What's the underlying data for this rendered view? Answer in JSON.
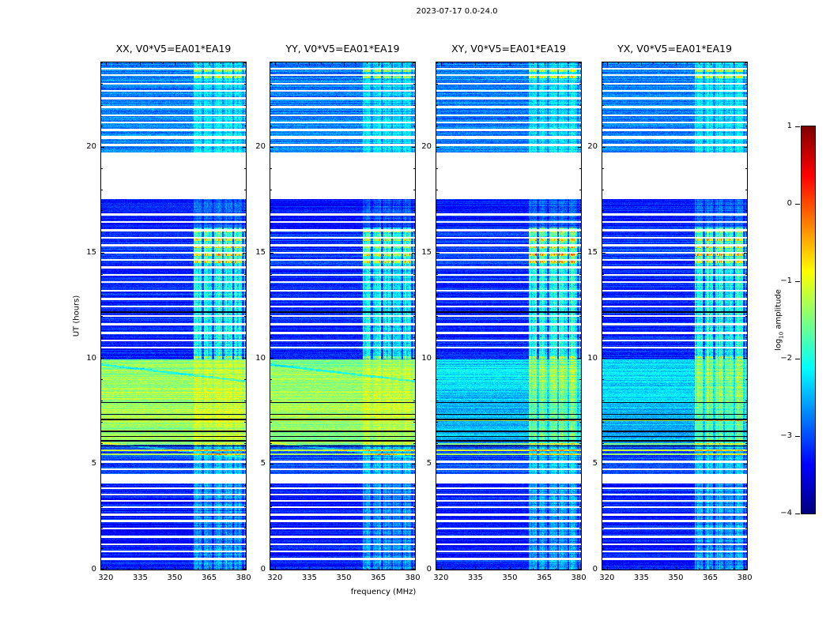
{
  "title": "2023-07-17 0.0-24.0",
  "chart_data": {
    "type": "heatmap",
    "title": "2023-07-17 0.0-24.0",
    "x": {
      "label": "frequency (MHz)",
      "min": 318,
      "max": 381,
      "ticks": [
        320,
        335,
        350,
        365,
        380
      ],
      "minor_step": 5
    },
    "y": {
      "label": "UT (hours)",
      "min": 0,
      "max": 24,
      "ticks": [
        0,
        5,
        10,
        15,
        20
      ],
      "minor_step": 1
    },
    "value_range": [
      -4,
      1
    ],
    "colormap": "jet",
    "panels": [
      {
        "title": "XX, V0*V5=EA01*EA19",
        "pol": "XX",
        "bright_band": true,
        "seed": 11
      },
      {
        "title": "YY, V0*V5=EA01*EA19",
        "pol": "YY",
        "bright_band": true,
        "seed": 22
      },
      {
        "title": "XY, V0*V5=EA01*EA19",
        "pol": "XY",
        "bright_band": false,
        "seed": 33
      },
      {
        "title": "YX, V0*V5=EA01*EA19",
        "pol": "YX",
        "bright_band": false,
        "seed": 44
      }
    ],
    "bands": [
      {
        "t0": 0,
        "t1": 4.07,
        "base": -3.25,
        "noise": 0.3,
        "rfi": 0.85
      },
      {
        "t0": 4.07,
        "t1": 4.52,
        "blank": true
      },
      {
        "t0": 4.52,
        "t1": 6.0,
        "base": -3.0,
        "noise": 0.32,
        "rfi": 0.8
      },
      {
        "t0": 6.0,
        "t1": 9.95,
        "base": -1.55,
        "base_cross": -2.5,
        "noise": 0.32,
        "rfi": 0.3,
        "rfi_cross": 1.1,
        "bright": true
      },
      {
        "t0": 9.95,
        "t1": 14.45,
        "base": -3.2,
        "noise": 0.3,
        "rfi": 1.45
      },
      {
        "t0": 14.45,
        "t1": 16.2,
        "base": -3.1,
        "noise": 0.3,
        "rfi": 1.7
      },
      {
        "t0": 16.2,
        "t1": 17.55,
        "base": -3.25,
        "noise": 0.28,
        "rfi": 0.5
      },
      {
        "t0": 17.55,
        "t1": 19.75,
        "blank": true
      },
      {
        "t0": 19.75,
        "t1": 24,
        "base": -2.75,
        "noise": 0.35,
        "rfi": 0.65
      }
    ],
    "white_lines": [
      [
        0.5,
        0.09
      ],
      [
        0.85,
        0.09
      ],
      [
        1.2,
        0.09
      ],
      [
        1.55,
        0.09
      ],
      [
        1.95,
        0.09
      ],
      [
        2.3,
        0.09
      ],
      [
        2.6,
        0.09
      ],
      [
        2.95,
        0.09
      ],
      [
        3.25,
        0.09
      ],
      [
        3.55,
        0.09
      ],
      [
        3.85,
        0.09
      ],
      [
        4.75,
        0.1
      ],
      [
        5.1,
        0.09
      ],
      [
        10.5,
        0.09
      ],
      [
        10.85,
        0.09
      ],
      [
        11.2,
        0.09
      ],
      [
        11.6,
        0.09
      ],
      [
        12.0,
        0.09
      ],
      [
        12.45,
        0.09
      ],
      [
        12.8,
        0.09
      ],
      [
        13.2,
        0.09
      ],
      [
        13.6,
        0.09
      ],
      [
        13.95,
        0.09
      ],
      [
        14.3,
        0.09
      ],
      [
        14.65,
        0.09
      ],
      [
        15.0,
        0.09
      ],
      [
        15.35,
        0.09
      ],
      [
        15.7,
        0.09
      ],
      [
        16.05,
        0.09
      ],
      [
        16.45,
        0.09
      ],
      [
        16.8,
        0.09
      ],
      [
        20.1,
        0.09
      ],
      [
        20.45,
        0.12
      ],
      [
        20.8,
        0.09
      ],
      [
        21.15,
        0.09
      ],
      [
        21.5,
        0.09
      ],
      [
        21.9,
        0.12
      ],
      [
        22.3,
        0.09
      ],
      [
        22.65,
        0.09
      ],
      [
        23.0,
        0.09
      ],
      [
        23.4,
        0.09
      ],
      [
        23.7,
        0.09
      ]
    ],
    "dark_lines": [
      [
        5.85,
        0.06
      ],
      [
        6.1,
        0.06
      ],
      [
        6.3,
        0.06
      ],
      [
        6.55,
        0.06
      ],
      [
        7.1,
        0.06
      ],
      [
        7.35,
        0.06
      ],
      [
        7.9,
        0.05
      ],
      [
        12.2,
        0.07
      ]
    ],
    "hot_lines": [
      [
        5.45,
        -1.3,
        0.07
      ],
      [
        5.65,
        -1.1,
        0.07
      ],
      [
        5.95,
        -1.5,
        0.07
      ],
      [
        7.05,
        -1.3,
        0.06
      ]
    ],
    "rfi_boost_lines": [
      [
        10.05,
        1.0,
        0.12
      ],
      [
        14.55,
        1.2,
        0.1
      ],
      [
        14.9,
        1.3,
        0.1
      ],
      [
        15.25,
        1.1,
        0.1
      ],
      [
        15.6,
        1.2,
        0.1
      ],
      [
        16.0,
        1.0,
        0.1
      ],
      [
        23.3,
        1.5,
        0.12
      ],
      [
        23.6,
        1.3,
        0.1
      ]
    ],
    "rfi_zone": {
      "f0": 358.3,
      "f1": 380.7,
      "period": 4.4,
      "gap": 0.9
    },
    "diagonals": [
      {
        "t_start": 9.7,
        "slope": -0.0125,
        "amp": -0.6,
        "width": 0.1,
        "bright_only": true
      },
      {
        "t_start": 6.0,
        "slope": -0.011,
        "amp": 0.45,
        "width": 0.09,
        "bright_only": true
      }
    ]
  },
  "colorbar": {
    "label_log": "log",
    "label_sub": "10",
    "label_rest": "amplitude",
    "vmin": -4,
    "vmax": 1,
    "ticks": [
      {
        "label": "1",
        "value": 1
      },
      {
        "label": "0",
        "value": 0
      },
      {
        "label": "−1",
        "value": -1
      },
      {
        "label": "−2",
        "value": -2
      },
      {
        "label": "−3",
        "value": -3
      },
      {
        "label": "−4",
        "value": -4
      }
    ]
  }
}
